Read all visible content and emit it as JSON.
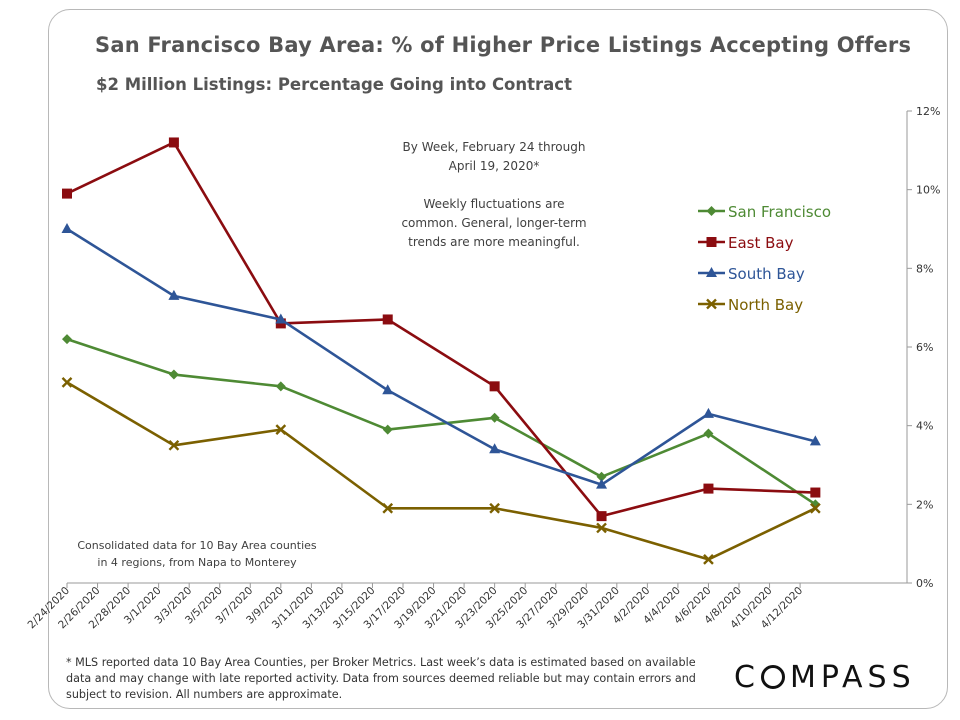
{
  "title": "San Francisco Bay Area: % of Higher Price Listings Accepting Offers",
  "subtitle": "$2 Million  Listings: Percentage Going into Contract",
  "annotation_week": [
    "By Week, February 24 through",
    "April 19, 2020*"
  ],
  "annotation_fluct": [
    "Weekly fluctuations are",
    "common. General, longer-term",
    "trends are more meaningful."
  ],
  "annotation_counties": [
    "Consolidated data for 10 Bay Area counties",
    "in 4 regions, from Napa to Monterey"
  ],
  "footnote": "* MLS reported data 10 Bay Area Counties, per Broker Metrics. Last week’s data is estimated based on available data and may change with late reported activity. Data from sources deemed reliable but may contain errors and subject to revision. All numbers are approximate.",
  "logo": {
    "before": "C",
    "after": "MPASS",
    "text": "COMPASS"
  },
  "chart_data": {
    "type": "line",
    "x_tick_labels": [
      "2/24/2020",
      "2/26/2020",
      "2/28/2020",
      "3/1/2020",
      "3/3/2020",
      "3/5/2020",
      "3/7/2020",
      "3/9/2020",
      "3/11/2020",
      "3/13/2020",
      "3/15/2020",
      "3/17/2020",
      "3/19/2020",
      "3/21/2020",
      "3/23/2020",
      "3/25/2020",
      "3/27/2020",
      "3/29/2020",
      "3/31/2020",
      "4/2/2020",
      "4/4/2020",
      "4/6/2020",
      "4/8/2020",
      "4/10/2020",
      "4/12/2020"
    ],
    "x_start": "2/24/2020",
    "x_end": "4/19/2020",
    "y_ticks": [
      "0%",
      "2%",
      "4%",
      "6%",
      "8%",
      "10%",
      "12%"
    ],
    "y_axis_position": "right",
    "ylim": [
      0,
      12
    ],
    "grid": false,
    "legend_position": "upper-right",
    "series": [
      {
        "name": "San Francisco",
        "color": "#4e8a34",
        "marker": "diamond",
        "x": [
          "2/24/2020",
          "3/2/2020",
          "3/9/2020",
          "3/16/2020",
          "3/23/2020",
          "3/30/2020",
          "4/6/2020",
          "4/13/2020"
        ],
        "values": [
          6.2,
          5.3,
          5.0,
          3.9,
          4.2,
          2.7,
          3.8,
          2.0
        ]
      },
      {
        "name": "East Bay",
        "color": "#8b0c10",
        "marker": "square",
        "x": [
          "2/24/2020",
          "3/2/2020",
          "3/9/2020",
          "3/16/2020",
          "3/23/2020",
          "3/30/2020",
          "4/6/2020",
          "4/13/2020"
        ],
        "values": [
          9.9,
          11.2,
          6.6,
          6.7,
          5.0,
          1.7,
          2.4,
          2.3
        ]
      },
      {
        "name": "South Bay",
        "color": "#2e5597",
        "marker": "triangle",
        "x": [
          "2/24/2020",
          "3/2/2020",
          "3/9/2020",
          "3/16/2020",
          "3/23/2020",
          "3/30/2020",
          "4/6/2020",
          "4/13/2020"
        ],
        "values": [
          9.0,
          7.3,
          6.7,
          4.9,
          3.4,
          2.5,
          4.3,
          3.6
        ]
      },
      {
        "name": "North Bay",
        "color": "#7b6000",
        "marker": "x",
        "x": [
          "2/24/2020",
          "3/2/2020",
          "3/9/2020",
          "3/16/2020",
          "3/23/2020",
          "3/30/2020",
          "4/6/2020",
          "4/13/2020"
        ],
        "values": [
          5.1,
          3.5,
          3.9,
          1.9,
          1.9,
          1.4,
          0.6,
          1.9
        ]
      }
    ]
  }
}
